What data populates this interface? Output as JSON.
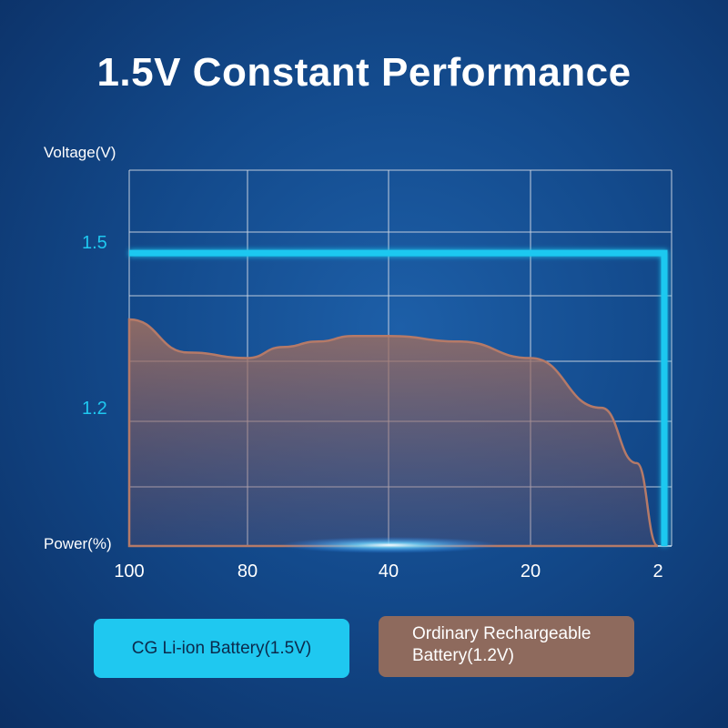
{
  "title": "1.5V Constant Performance",
  "chart_data": {
    "type": "line",
    "title": "1.5V Constant Performance",
    "ylabel": "Voltage(V)",
    "xlabel": "Power(%)",
    "y_ticks": [
      {
        "label": "1.5",
        "value": 1.5
      },
      {
        "label": "1.2",
        "value": 1.2
      }
    ],
    "ylim": [
      0.95,
      1.63
    ],
    "x_ticks": [
      "100",
      "80",
      "40",
      "20",
      "2"
    ],
    "x_positions": [
      100,
      80,
      40,
      20,
      2
    ],
    "grid": true,
    "series": [
      {
        "name": "CG Li-ion Battery(1.5V)",
        "color": "#1fc8f0",
        "x": [
          100,
          2,
          2
        ],
        "y": [
          1.48,
          1.48,
          0.95
        ]
      },
      {
        "name": "Ordinary Rechargeable Battery(1.2V)",
        "color": "#8e6a5d",
        "style": "filled-area",
        "x": [
          100,
          90,
          80,
          70,
          60,
          50,
          40,
          30,
          20,
          10,
          5,
          2
        ],
        "y": [
          1.36,
          1.3,
          1.29,
          1.31,
          1.32,
          1.33,
          1.33,
          1.32,
          1.29,
          1.2,
          1.1,
          0.95
        ]
      }
    ]
  },
  "legend": {
    "liion_label": "CG Li-ion Battery(1.5V)",
    "ordinary_line1": "Ordinary Rechargeable",
    "ordinary_line2": "Battery(1.2V)"
  },
  "colors": {
    "accent": "#1fc8f0",
    "ordinary": "#8e6a5d",
    "grid": "#c9d3e2"
  }
}
